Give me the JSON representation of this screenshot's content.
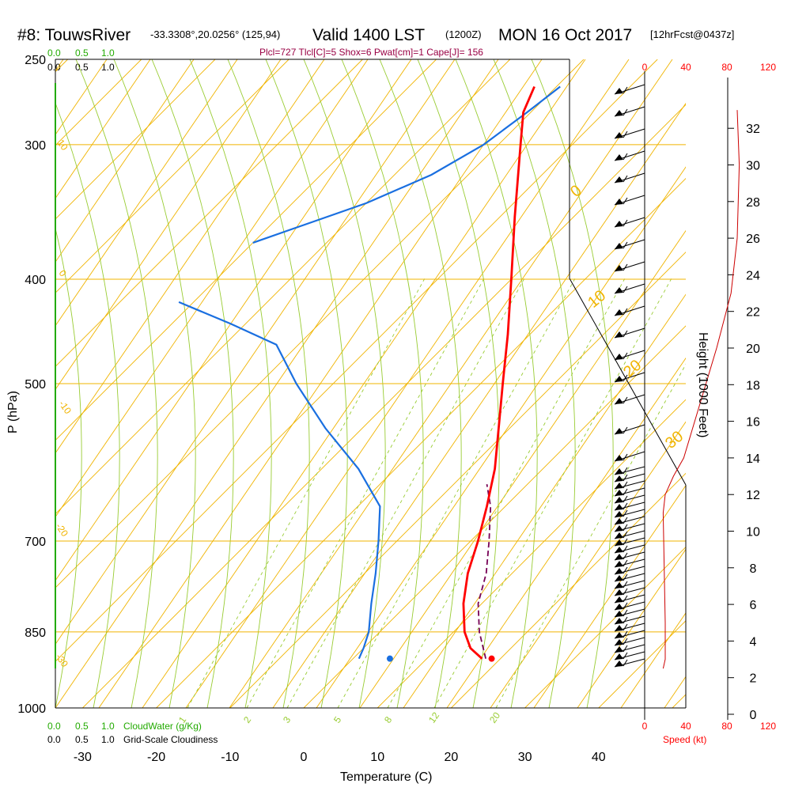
{
  "header": {
    "station": "#8: TouwsRiver",
    "coords": "-33.3308°,20.0256° (125,94)",
    "valid": "Valid 1400 LST",
    "zulu": "(1200Z)",
    "date": "MON 16 Oct 2017",
    "forecast": "[12hrFcst@0437z]",
    "indices": "Plcl=727 Tlcl[C]=5 Shox=6 Pwat[cm]=1 Cape[J]= 156"
  },
  "labels": {
    "xlabel": "Temperature (C)",
    "ylabel": "P (hPa)",
    "height_label": "Height (1000 Feet)",
    "speed_label": "Speed (kt)",
    "cloudwater_label": "CloudWater (g/Kg)",
    "cloudiness_label": "Grid-Scale Cloudiness"
  },
  "top_scales": {
    "green": [
      "0.0",
      "0.5",
      "1.0"
    ],
    "black": [
      "0.0",
      "0.5",
      "1.0"
    ]
  },
  "bottom_scales": {
    "green": [
      "0.0",
      "0.5",
      "1.0"
    ],
    "black": [
      "0.0",
      "0.5",
      "1.0"
    ]
  },
  "colors": {
    "temperature": "#ff0000",
    "dewpoint": "#1a6fe0",
    "parcel": "#770055",
    "isotherm_adiabat": "#f0b400",
    "moist_adiabat": "#99cc33",
    "mixing_ratio": "#99cc33",
    "cloud_scale": "#22aa00",
    "wind_speed": "#cc0000"
  },
  "chart_data": {
    "type": "skew-t",
    "ylim_hpa": [
      1000,
      250
    ],
    "xlim_c": [
      -35,
      45
    ],
    "pressure_ticks": [
      250,
      300,
      400,
      500,
      700,
      850,
      1000
    ],
    "temperature_ticks": [
      -30,
      -20,
      -10,
      0,
      10,
      20,
      30,
      40
    ],
    "height_ticks_kft": [
      0,
      2,
      4,
      6,
      8,
      10,
      12,
      14,
      16,
      18,
      20,
      22,
      24,
      26,
      28,
      30,
      32
    ],
    "speed_ticks_kt": [
      0,
      40,
      80,
      120
    ],
    "mixing_ratio_labels": [
      "1",
      "2",
      "3",
      "5",
      "8",
      "12",
      "20"
    ],
    "isotherm_labels_left": [
      "10",
      "0",
      "-10",
      "-20",
      "-30"
    ],
    "isotherm_labels_right": [
      "0",
      "10",
      "20",
      "30"
    ],
    "temperature_profile": [
      {
        "p": 900,
        "t": 17.5
      },
      {
        "p": 880,
        "t": 14.5
      },
      {
        "p": 850,
        "t": 11.5
      },
      {
        "p": 800,
        "t": 7.5
      },
      {
        "p": 750,
        "t": 4.0
      },
      {
        "p": 700,
        "t": 1.0
      },
      {
        "p": 650,
        "t": -2.5
      },
      {
        "p": 600,
        "t": -6.5
      },
      {
        "p": 550,
        "t": -11.5
      },
      {
        "p": 500,
        "t": -17.0
      },
      {
        "p": 450,
        "t": -23.0
      },
      {
        "p": 400,
        "t": -30.0
      },
      {
        "p": 350,
        "t": -38.0
      },
      {
        "p": 300,
        "t": -47.0
      },
      {
        "p": 280,
        "t": -51.0
      },
      {
        "p": 265,
        "t": -53.0
      }
    ],
    "dewpoint_profile": [
      {
        "p": 900,
        "t": 0.8
      },
      {
        "p": 880,
        "t": 0.0
      },
      {
        "p": 850,
        "t": -1.5
      },
      {
        "p": 800,
        "t": -5.0
      },
      {
        "p": 750,
        "t": -8.5
      },
      {
        "p": 700,
        "t": -12.5
      },
      {
        "p": 650,
        "t": -17.0
      },
      {
        "p": 600,
        "t": -25.0
      },
      {
        "p": 550,
        "t": -35.0
      },
      {
        "p": 500,
        "t": -45.0
      },
      {
        "p": 460,
        "t": -53.0
      },
      {
        "p": 440,
        "t": -62.0
      },
      {
        "p": 420,
        "t": -72.0
      }
    ],
    "dewpoint_upper": [
      {
        "p": 370,
        "t": -70.0
      },
      {
        "p": 340,
        "t": -60.0
      },
      {
        "p": 320,
        "t": -55.0
      },
      {
        "p": 300,
        "t": -52.0
      },
      {
        "p": 280,
        "t": -50.5
      },
      {
        "p": 265,
        "t": -49.5
      }
    ],
    "parcel_profile": [
      {
        "p": 900,
        "t": 18.0
      },
      {
        "p": 850,
        "t": 13.5
      },
      {
        "p": 800,
        "t": 9.5
      },
      {
        "p": 750,
        "t": 6.5
      },
      {
        "p": 700,
        "t": 2.5
      },
      {
        "p": 650,
        "t": -2.0
      },
      {
        "p": 620,
        "t": -5.5
      }
    ],
    "surface": {
      "p": 900,
      "t": 18.8,
      "td": 5.0
    },
    "wind_speed_profile_kt": [
      {
        "h": 2.5,
        "s": 18
      },
      {
        "h": 3,
        "s": 20
      },
      {
        "h": 5,
        "s": 20
      },
      {
        "h": 8,
        "s": 19
      },
      {
        "h": 11,
        "s": 18
      },
      {
        "h": 12,
        "s": 20
      },
      {
        "h": 13,
        "s": 28
      },
      {
        "h": 14,
        "s": 38
      },
      {
        "h": 17,
        "s": 54
      },
      {
        "h": 20,
        "s": 70
      },
      {
        "h": 23,
        "s": 84
      },
      {
        "h": 26,
        "s": 90
      },
      {
        "h": 30,
        "s": 92
      },
      {
        "h": 33,
        "s": 90
      }
    ]
  }
}
